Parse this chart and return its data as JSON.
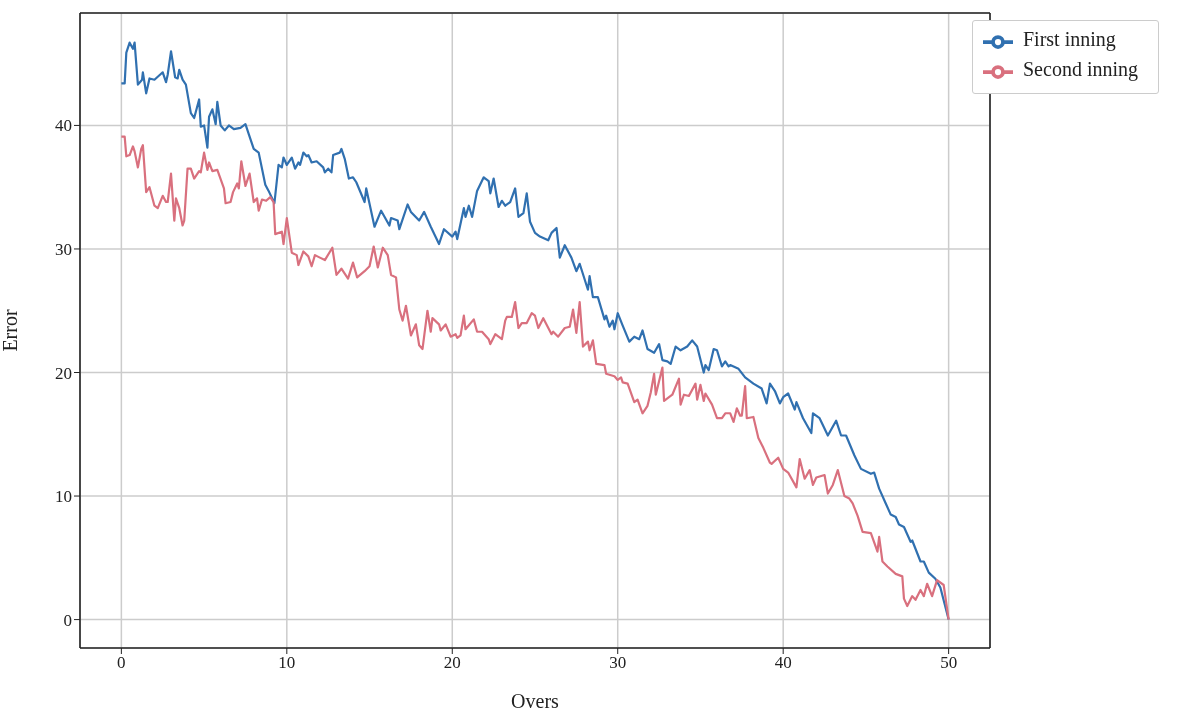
{
  "chart_data": {
    "type": "line",
    "xlabel": "Overs",
    "ylabel": "Error",
    "xlim": [
      -2.5,
      52.5
    ],
    "ylim": [
      -2.3,
      49.1
    ],
    "xticks": [
      0,
      10,
      20,
      30,
      40,
      50
    ],
    "yticks": [
      0,
      10,
      20,
      30,
      40
    ],
    "grid": true,
    "legend": "top right",
    "marker": "none",
    "line_style": "solid",
    "series": [
      {
        "name": "First inning",
        "color": "#3070b0",
        "x": [
          0,
          0.2,
          0.3,
          0.5,
          0.7,
          0.8,
          1,
          1.25,
          1.3,
          1.5,
          1.7,
          2,
          2.5,
          2.7,
          2.8,
          3,
          3.25,
          3.4,
          3.5,
          3.7,
          3.9,
          4.2,
          4.4,
          4.7,
          4.8,
          5,
          5.2,
          5.3,
          5.5,
          5.7,
          5.8,
          6,
          6.25,
          6.5,
          6.8,
          7.2,
          7.5,
          7.7,
          8,
          8.3,
          8.7,
          8.9,
          9.25,
          9.5,
          9.7,
          9.8,
          10,
          10.3,
          10.5,
          10.7,
          10.8,
          11,
          11.2,
          11.3,
          11.5,
          11.8,
          12.2,
          12.3,
          12.5,
          12.7,
          12.8,
          13.2,
          13.3,
          13.5,
          13.75,
          14,
          14.2,
          14.7,
          14.8,
          15.3,
          15.7,
          16.2,
          16.3,
          16.7,
          16.8,
          17.3,
          17.5,
          18,
          18.3,
          18.7,
          19.2,
          19.5,
          20,
          20.2,
          20.3,
          20.7,
          20.8,
          21,
          21.2,
          21.5,
          21.9,
          22.2,
          22.3,
          22.5,
          22.8,
          23,
          23.2,
          23.5,
          23.8,
          24,
          24.3,
          24.5,
          24.7,
          25,
          25.3,
          25.8,
          26,
          26.3,
          26.5,
          26.8,
          27.2,
          27.5,
          27.7,
          28.2,
          28.3,
          28.5,
          28.8,
          29.2,
          29.3,
          29.5,
          29.7,
          29.8,
          30,
          30.3,
          30.7,
          31,
          31.3,
          31.5,
          31.8,
          32.2,
          32.5,
          32.7,
          33,
          33.2,
          33.5,
          33.8,
          34.2,
          34.5,
          34.8,
          35.2,
          35.3,
          35.5,
          35.8,
          36,
          36.3,
          36.5,
          36.7,
          36.8,
          37.3,
          37.7,
          38.2,
          38.7,
          39,
          39.2,
          39.5,
          39.8,
          40,
          40.3,
          40.7,
          40.8,
          41.2,
          41.7,
          41.8,
          42.2,
          42.7,
          43.2,
          43.5,
          43.8,
          44.3,
          44.7,
          45.3,
          45.5,
          45.8,
          46.2,
          46.5,
          46.8,
          47,
          47.3,
          47.7,
          47.8,
          48.3,
          48.5,
          48.8,
          49.2,
          49.5,
          50
        ],
        "values": [
          43.4,
          43.4,
          45.9,
          46.7,
          46.2,
          46.7,
          43.3,
          43.7,
          44.3,
          42.6,
          43.8,
          43.7,
          44.3,
          43.5,
          44.1,
          46,
          43.9,
          43.8,
          44.5,
          43.7,
          43.3,
          41,
          40.6,
          42.1,
          39.9,
          40,
          38.2,
          40.7,
          41.3,
          40.1,
          41.9,
          40,
          39.6,
          40,
          39.7,
          39.8,
          40.1,
          39.3,
          38.1,
          37.8,
          35.2,
          34.7,
          33.7,
          36.8,
          36.6,
          37.4,
          36.8,
          37.4,
          36.5,
          37,
          36.8,
          37.8,
          37.5,
          37.6,
          37,
          37.1,
          36.6,
          36.2,
          36.5,
          36.2,
          37.6,
          37.8,
          38.1,
          37.3,
          35.7,
          35.8,
          35.4,
          33.8,
          34.9,
          31.8,
          33.1,
          31.9,
          32.5,
          32.3,
          31.6,
          33.6,
          33,
          32.3,
          33,
          31.8,
          30.4,
          31.6,
          31,
          31.4,
          30.8,
          33.3,
          32.6,
          33.5,
          32.6,
          34.7,
          35.8,
          35.5,
          34.5,
          35.7,
          33.4,
          33.9,
          33.5,
          33.8,
          34.9,
          32.6,
          32.9,
          34.5,
          32.2,
          31.3,
          31,
          30.7,
          31.3,
          31.7,
          29.3,
          30.3,
          29.3,
          28.2,
          28.8,
          26.7,
          27.8,
          26.1,
          26.1,
          24.3,
          24.6,
          23.7,
          24.2,
          23.5,
          24.8,
          23.8,
          22.5,
          22.9,
          22.7,
          23.4,
          21.9,
          21.6,
          22.3,
          21,
          20.9,
          20.7,
          22.1,
          21.8,
          22.1,
          22.6,
          22.1,
          20,
          20.6,
          20.2,
          21.9,
          21.8,
          20.5,
          20.9,
          20.5,
          20.6,
          20.3,
          19.6,
          19.1,
          18.7,
          17.5,
          19.1,
          18.5,
          17.5,
          18,
          18.3,
          17,
          17.6,
          16.3,
          15.1,
          16.7,
          16.3,
          14.9,
          16.1,
          14.9,
          14.9,
          13.3,
          12.2,
          11.8,
          11.9,
          10.6,
          9.4,
          8.5,
          8.3,
          7.7,
          7.5,
          6.3,
          6.4,
          4.7,
          4.7,
          3.8,
          3.3,
          2.6,
          0
        ]
      },
      {
        "name": "Second inning",
        "color": "#d9707e",
        "x": [
          0,
          0.2,
          0.3,
          0.5,
          0.7,
          0.8,
          1,
          1.2,
          1.3,
          1.5,
          1.7,
          2,
          2.2,
          2.5,
          2.7,
          2.8,
          3,
          3.2,
          3.3,
          3.5,
          3.7,
          3.8,
          4,
          4.2,
          4.4,
          4.7,
          4.8,
          5,
          5.2,
          5.3,
          5.5,
          5.8,
          6.2,
          6.3,
          6.6,
          6.75,
          7,
          7.1,
          7.25,
          7.5,
          7.75,
          8,
          8.2,
          8.3,
          8.5,
          8.75,
          9,
          9.2,
          9.3,
          9.7,
          9.8,
          10,
          10.3,
          10.6,
          10.7,
          11,
          11.3,
          11.5,
          11.7,
          12,
          12.3,
          12.75,
          13,
          13.3,
          13.7,
          14,
          14.25,
          14.7,
          15,
          15.25,
          15.5,
          15.8,
          16.1,
          16.3,
          16.6,
          16.8,
          17,
          17.2,
          17.5,
          17.8,
          18,
          18.2,
          18.5,
          18.7,
          18.8,
          19.2,
          19.3,
          19.6,
          19.9,
          20.2,
          20.3,
          20.5,
          20.7,
          20.8,
          21.3,
          21.5,
          21.8,
          22.2,
          22.3,
          22.6,
          23,
          23.2,
          23.3,
          23.6,
          23.8,
          24,
          24.2,
          24.5,
          24.8,
          25,
          25.2,
          25.5,
          26,
          26.1,
          26.4,
          26.8,
          27.1,
          27.3,
          27.5,
          27.7,
          27.9,
          28.2,
          28.3,
          28.5,
          28.7,
          29.2,
          29.3,
          29.8,
          30,
          30.2,
          30.3,
          30.6,
          31,
          31.2,
          31.5,
          31.8,
          32,
          32.2,
          32.3,
          32.7,
          32.8,
          33.3,
          33.7,
          33.8,
          34,
          34.3,
          34.7,
          34.8,
          35,
          35.2,
          35.3,
          35.7,
          36,
          36.3,
          36.5,
          36.8,
          37,
          37.2,
          37.4,
          37.5,
          37.7,
          37.8,
          38.2,
          38.5,
          38.8,
          39.2,
          39.3,
          39.7,
          40,
          40.3,
          40.8,
          41,
          41.3,
          41.6,
          41.8,
          42,
          42.5,
          42.7,
          43,
          43.3,
          43.7,
          44,
          44.2,
          44.5,
          44.8,
          45.3,
          45.7,
          45.8,
          46,
          46.3,
          46.8,
          47.2,
          47.3,
          47.5,
          47.8,
          48,
          48.3,
          48.5,
          48.7,
          49,
          49.3,
          49.7,
          50
        ],
        "values": [
          39.1,
          39.1,
          37.5,
          37.6,
          38.3,
          37.9,
          36.6,
          38.1,
          38.4,
          34.6,
          35,
          33.5,
          33.3,
          34.3,
          33.8,
          33.8,
          36.1,
          32.3,
          34.1,
          33.3,
          31.9,
          32.3,
          36.5,
          36.5,
          35.7,
          36.3,
          36.2,
          37.8,
          36.4,
          37,
          36.3,
          36.4,
          34.9,
          33.7,
          33.8,
          34.6,
          35.3,
          34.9,
          37.1,
          35.1,
          36.1,
          33.8,
          34.1,
          33.1,
          34,
          33.9,
          34.2,
          33.8,
          31.2,
          31.4,
          30.4,
          32.5,
          29.7,
          29.5,
          28.7,
          29.8,
          29.4,
          28.6,
          29.5,
          29.3,
          29.1,
          30.1,
          27.9,
          28.4,
          27.6,
          28.9,
          27.7,
          28.2,
          28.6,
          30.2,
          28.5,
          30.1,
          29.5,
          27.9,
          27.7,
          25.1,
          24.2,
          25.4,
          23,
          23.9,
          22.2,
          21.9,
          25,
          23.3,
          24.4,
          23.9,
          23.4,
          23.9,
          22.9,
          23.1,
          22.8,
          23,
          24.6,
          23.5,
          24.3,
          23.3,
          23.3,
          22.7,
          22.3,
          23.1,
          22.7,
          24.2,
          24.5,
          24.5,
          25.7,
          23.6,
          24,
          24,
          24.8,
          24.6,
          23.6,
          24.4,
          23.1,
          23.3,
          22.9,
          23.6,
          23.7,
          25.1,
          23.2,
          25.7,
          22.1,
          22.5,
          21.8,
          22.6,
          20.7,
          20.6,
          19.9,
          19.7,
          19.4,
          19.6,
          19.2,
          19.1,
          17.6,
          17.8,
          16.7,
          17.3,
          18.4,
          19.9,
          18.2,
          20.4,
          17.7,
          18.2,
          19.5,
          17.4,
          18.2,
          18.1,
          19.1,
          17.8,
          19,
          17.7,
          18.3,
          17.4,
          16.3,
          16.3,
          16.7,
          16.7,
          16,
          17.1,
          16.5,
          16.5,
          18.9,
          16.3,
          16.4,
          14.7,
          13.9,
          12.7,
          12.6,
          13.1,
          12.2,
          11.9,
          10.7,
          13,
          11.4,
          12.1,
          10.9,
          11.5,
          11.7,
          10.2,
          10.9,
          12.1,
          10,
          9.8,
          9.4,
          8.4,
          7.1,
          7,
          5.5,
          6.7,
          4.7,
          4.3,
          3.7,
          3.5,
          1.7,
          1.1,
          1.9,
          1.6,
          2.4,
          1.9,
          2.9,
          1.9,
          3.2,
          2.8,
          0
        ]
      }
    ]
  }
}
